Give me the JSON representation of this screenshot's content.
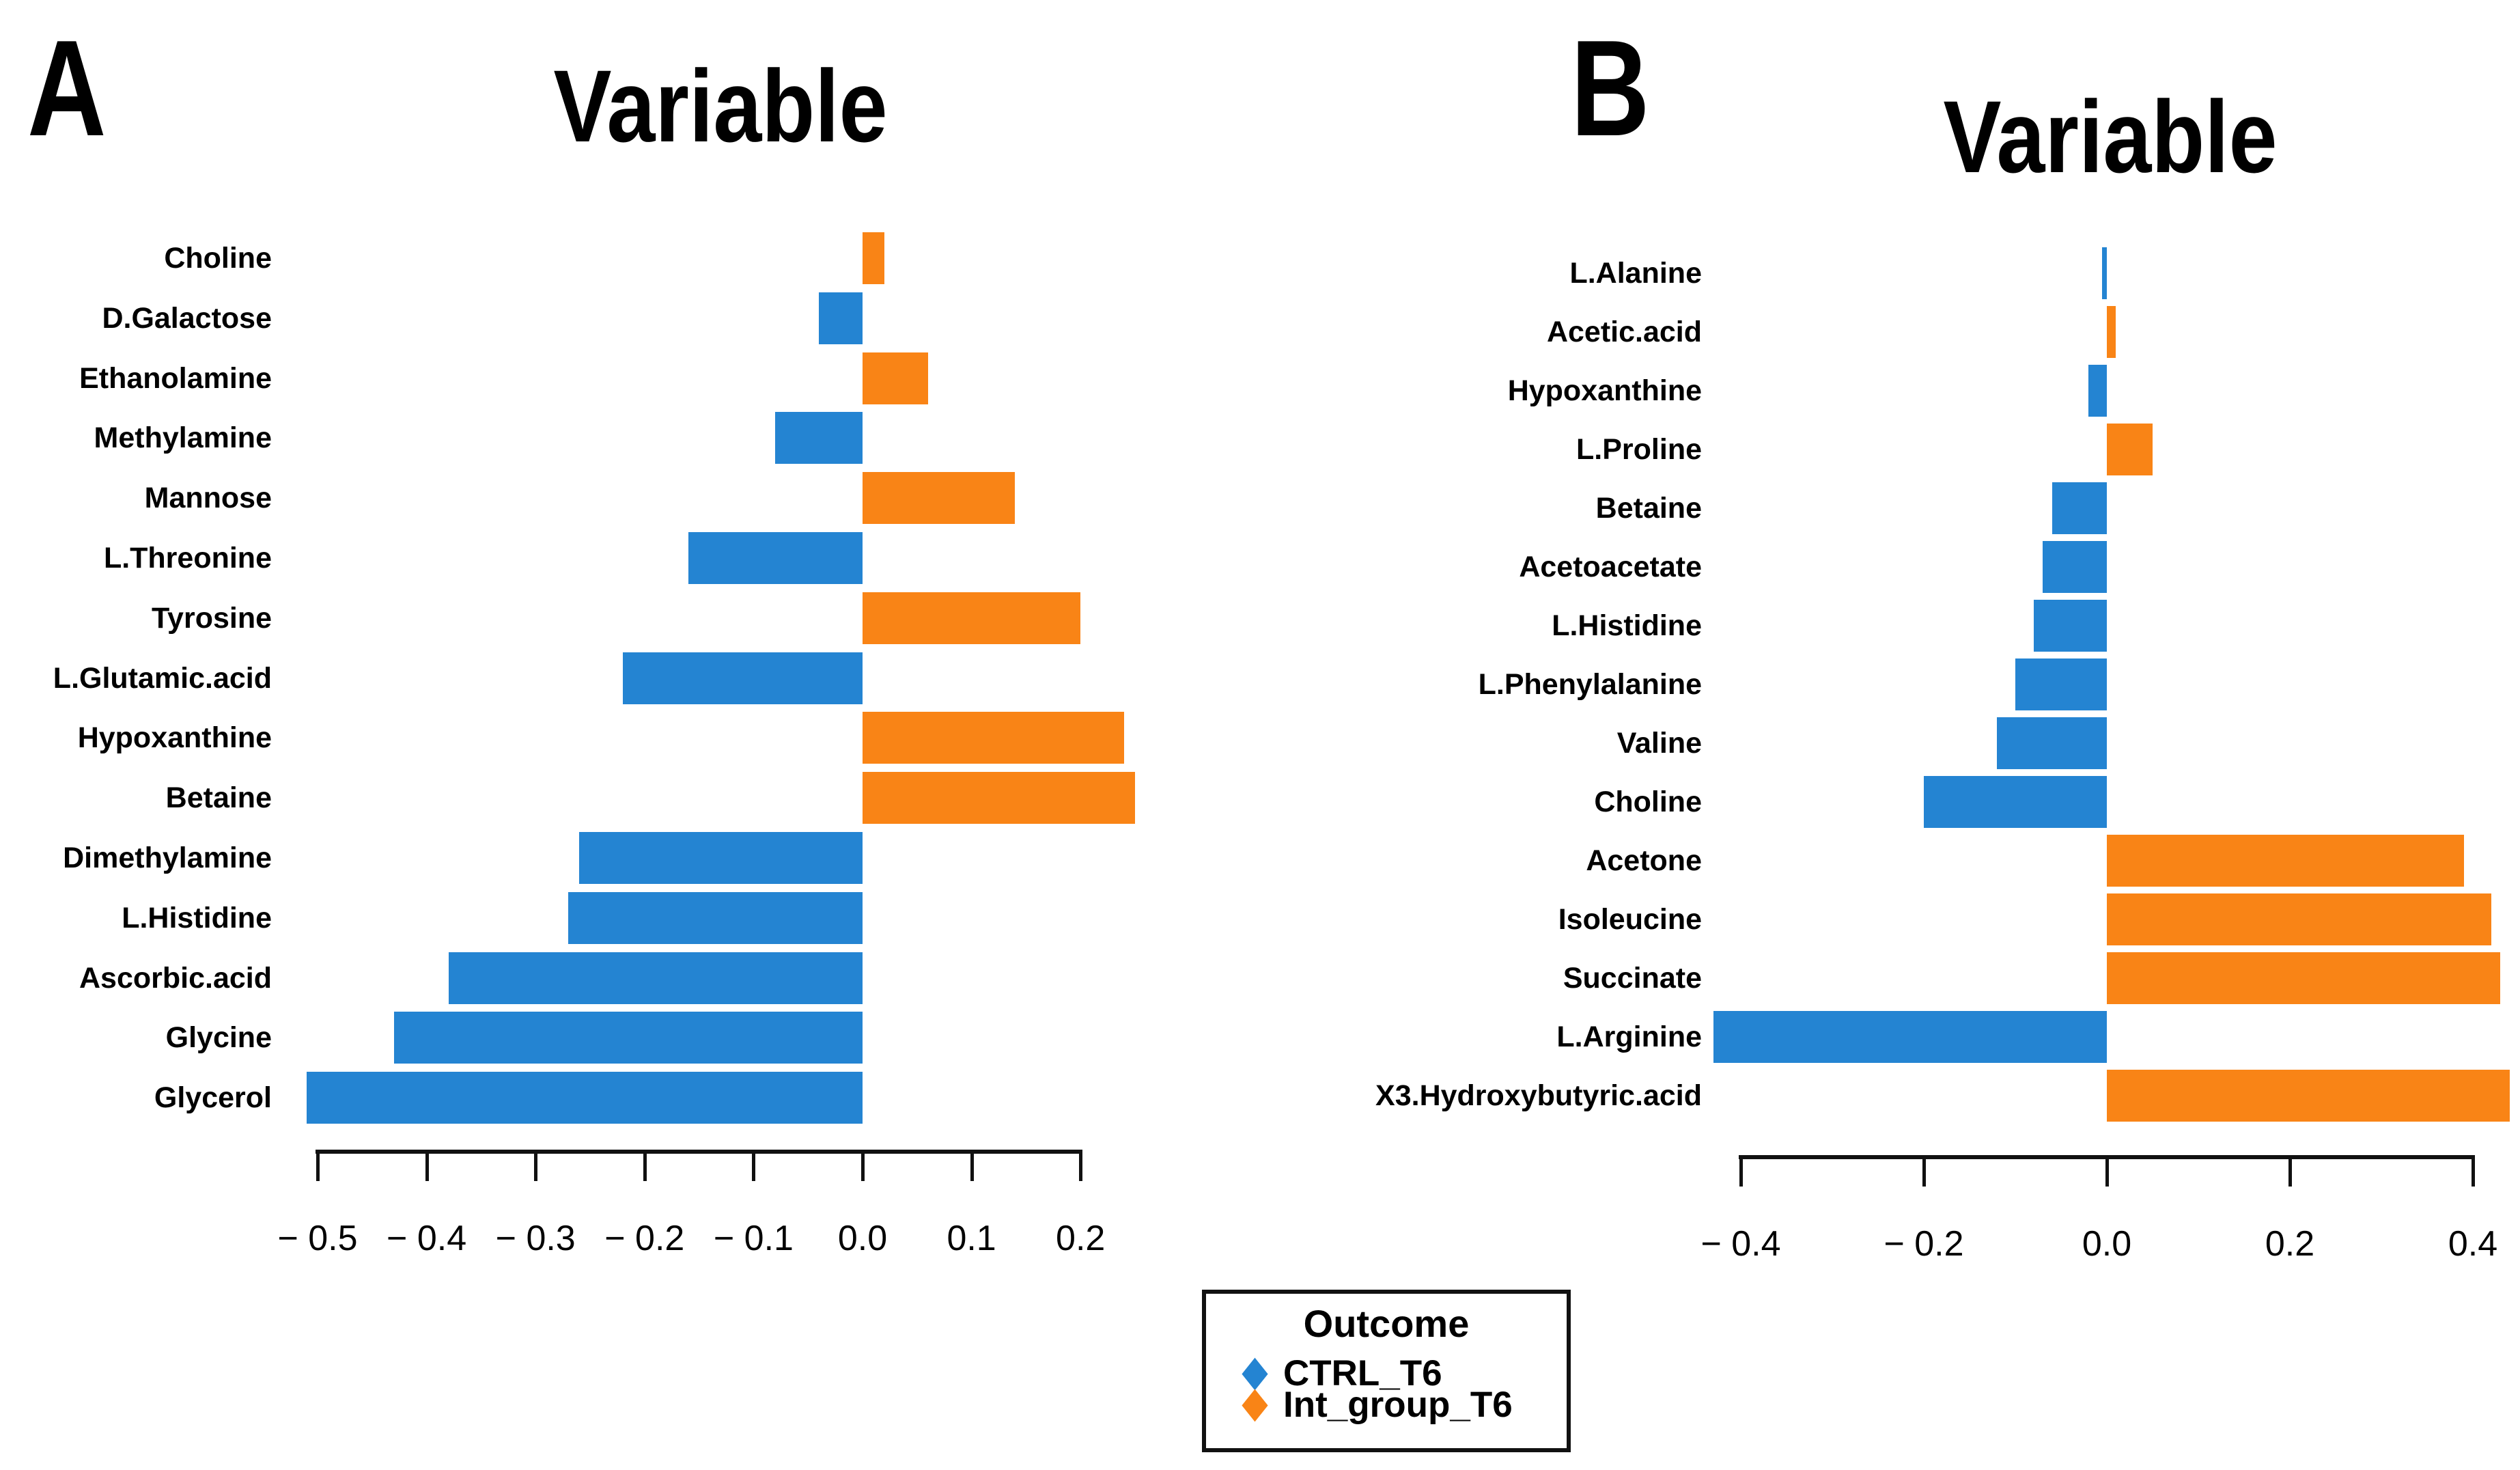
{
  "figure": {
    "background": "#FFFFFF"
  },
  "colors": {
    "CTRL_T6": "#2484D2",
    "Int_group_T6": "#F98416",
    "axis": "#111111",
    "text": "#000000"
  },
  "legend": {
    "title": "Outcome",
    "position": "bottom-center",
    "items": [
      {
        "label": "CTRL_T6",
        "color": "#2484D2",
        "marker": "diamond"
      },
      {
        "label": "Int_group_T6",
        "color": "#F98416",
        "marker": "diamond"
      }
    ]
  },
  "chart_data": [
    {
      "type": "bar",
      "orientation": "horizontal",
      "panel_label": "A",
      "title": "Variable",
      "xlabel": "",
      "ylabel": "",
      "grid": false,
      "xlim": [
        -0.55,
        0.27
      ],
      "x_ticks": [
        -0.5,
        -0.4,
        -0.3,
        -0.2,
        -0.1,
        0.0,
        0.1,
        0.2
      ],
      "x_tick_labels": [
        "− 0.5",
        "− 0.4",
        "− 0.3",
        "− 0.2",
        "− 0.1",
        "0.0",
        "0.1",
        "0.2"
      ],
      "categories": [
        "Choline",
        "D.Galactose",
        "Ethanolamine",
        "Methylamine",
        "Mannose",
        "L.Threonine",
        "Tyrosine",
        "L.Glutamic.acid",
        "Hypoxanthine",
        "Betaine",
        "Dimethylamine",
        "L.Histidine",
        "Ascorbic.acid",
        "Glycine",
        "Glycerol"
      ],
      "values": [
        0.02,
        -0.04,
        0.06,
        -0.08,
        0.14,
        -0.16,
        0.2,
        -0.22,
        0.24,
        0.25,
        -0.26,
        -0.27,
        -0.38,
        -0.43,
        -0.51
      ],
      "groups": [
        "Int_group_T6",
        "CTRL_T6",
        "Int_group_T6",
        "CTRL_T6",
        "Int_group_T6",
        "CTRL_T6",
        "Int_group_T6",
        "CTRL_T6",
        "Int_group_T6",
        "Int_group_T6",
        "CTRL_T6",
        "CTRL_T6",
        "CTRL_T6",
        "CTRL_T6",
        "CTRL_T6"
      ]
    },
    {
      "type": "bar",
      "orientation": "horizontal",
      "panel_label": "B",
      "title": "Variable",
      "xlabel": "",
      "ylabel": "",
      "grid": false,
      "xlim": [
        -0.47,
        0.47
      ],
      "x_ticks": [
        -0.4,
        -0.2,
        0.0,
        0.2,
        0.4
      ],
      "x_tick_labels": [
        "− 0.4",
        "− 0.2",
        "0.0",
        "0.2",
        "0.4"
      ],
      "categories": [
        "L.Alanine",
        "Acetic.acid",
        "Hypoxanthine",
        "L.Proline",
        "Betaine",
        "Acetoacetate",
        "L.Histidine",
        "L.Phenylalanine",
        "Valine",
        "Choline",
        "Acetone",
        "Isoleucine",
        "Succinate",
        "L.Arginine",
        "X3.Hydroxybutyric.acid"
      ],
      "values": [
        -0.005,
        0.01,
        -0.02,
        0.05,
        -0.06,
        -0.07,
        -0.08,
        -0.1,
        -0.12,
        -0.2,
        0.39,
        0.42,
        0.43,
        -0.43,
        0.44
      ],
      "groups": [
        "CTRL_T6",
        "Int_group_T6",
        "CTRL_T6",
        "Int_group_T6",
        "CTRL_T6",
        "CTRL_T6",
        "CTRL_T6",
        "CTRL_T6",
        "CTRL_T6",
        "CTRL_T6",
        "Int_group_T6",
        "Int_group_T6",
        "Int_group_T6",
        "CTRL_T6",
        "Int_group_T6"
      ]
    }
  ]
}
